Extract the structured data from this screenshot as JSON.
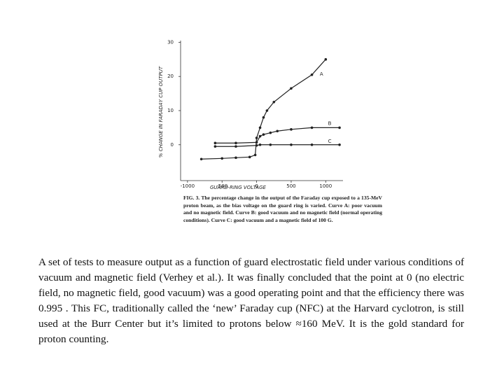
{
  "chart_data": {
    "type": "line",
    "xlabel": "GUARD-RING VOLTAGE",
    "ylabel": "% CHANGE IN FARADAY CUP OUTPUT",
    "caption": "FIG. 3. The percentage change in the output of the Faraday cup exposed to a 135-MeV proton beam, as the bias voltage on the guard ring is varied. Curve A: poor vacuum and no magnetic field. Curve B: good vacuum and no magnetic field (normal operating conditions). Curve C: good vacuum and a magnetic field of 100 G.",
    "xlim": [
      -1100,
      1250
    ],
    "ylim": [
      -10.5,
      30.5
    ],
    "xticks": [
      -1000,
      -500,
      0,
      500,
      1000
    ],
    "yticks": [
      0,
      10,
      20,
      30
    ],
    "series": [
      {
        "name": "A",
        "color": "#222222",
        "x": [
          -800,
          -500,
          -300,
          -100,
          -20,
          0,
          50,
          100,
          150,
          250,
          500,
          800,
          1000
        ],
        "values": [
          -4.2,
          -4,
          -3.8,
          -3.6,
          -3,
          2,
          5,
          8,
          10,
          12.5,
          16.5,
          20.5,
          25
        ]
      },
      {
        "name": "B",
        "color": "#222222",
        "x": [
          -600,
          -300,
          0,
          50,
          100,
          200,
          300,
          500,
          800,
          1200
        ],
        "values": [
          0.5,
          0.5,
          0.7,
          2.5,
          3,
          3.5,
          4,
          4.5,
          5,
          5
        ]
      },
      {
        "name": "C",
        "color": "#222222",
        "x": [
          -600,
          -300,
          0,
          50,
          200,
          500,
          800,
          1200
        ],
        "values": [
          -0.5,
          -0.5,
          -0.2,
          0,
          0,
          0,
          0,
          0
        ]
      }
    ]
  },
  "paragraph": "A set of tests to measure output as a function of guard electrostatic field under various conditions of vacuum and magnetic field (Verhey et al.). It was finally concluded that the point at 0 (no electric field, no magnetic field, good vacuum) was a good operating point and that the efficiency there was 0.995 . This FC, traditionally called the ‘new’ Faraday cup (NFC) at the Harvard cyclotron, is still used at the Burr Center but it’s limited to protons below ≈160 MeV. It is the gold standard for proton counting."
}
